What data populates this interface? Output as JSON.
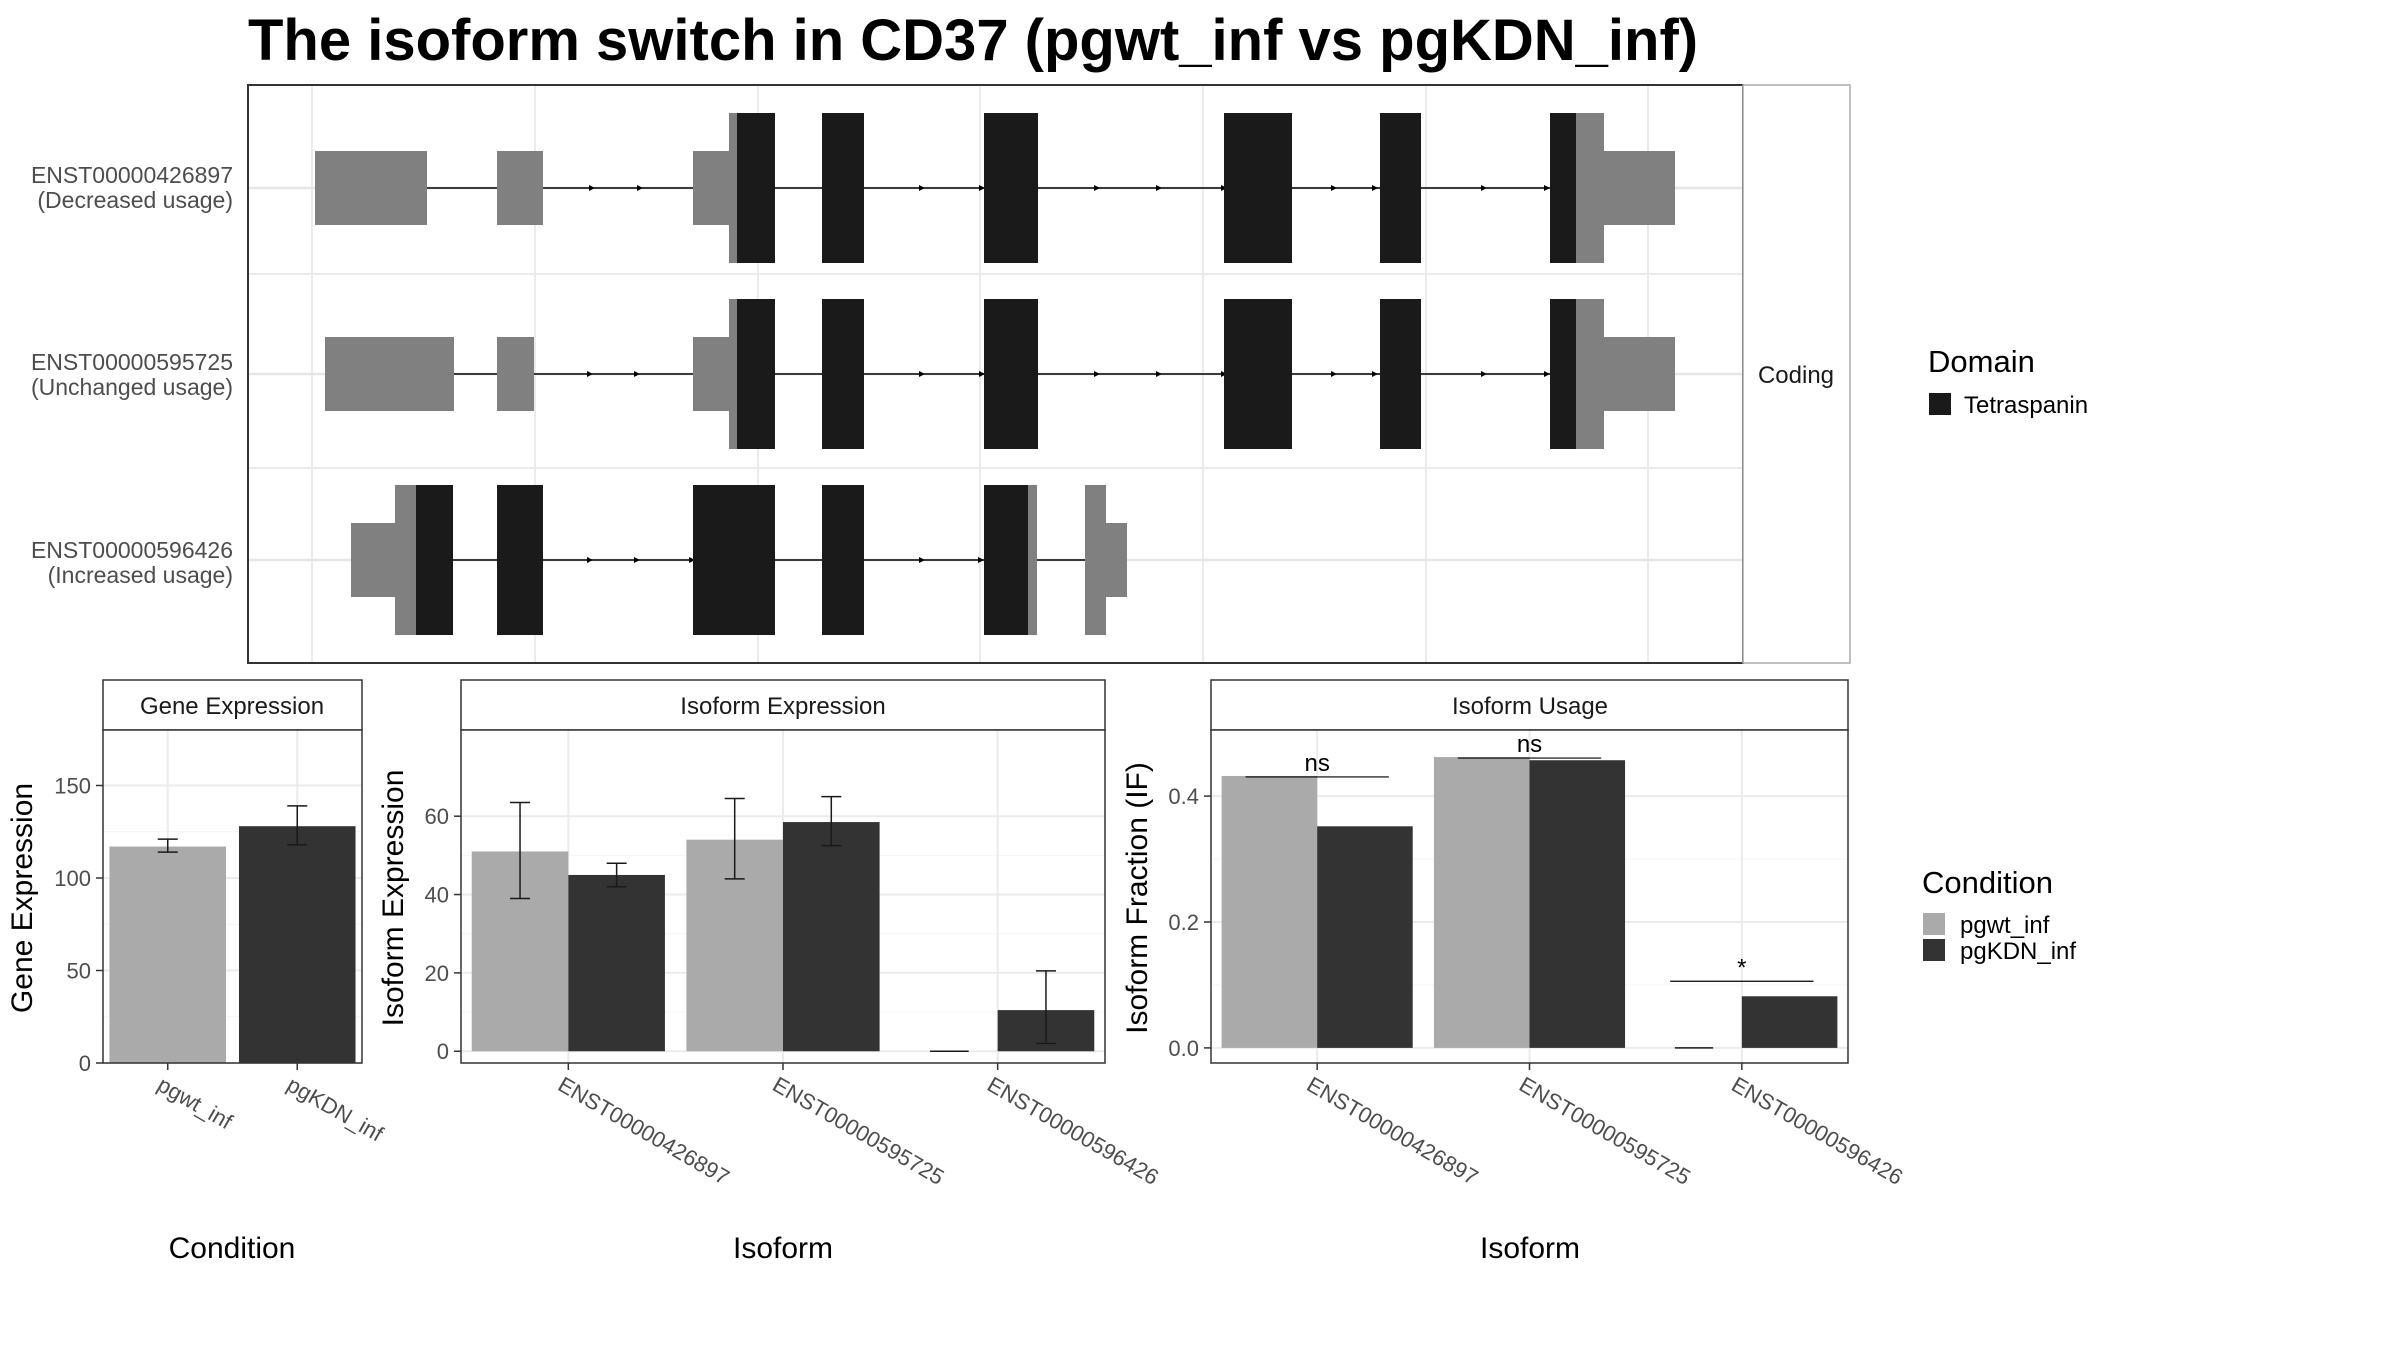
{
  "title": "The isoform switch in CD37 (pgwt_inf vs pgKDN_inf)",
  "colors": {
    "pgwt_inf": "#aaaaaa",
    "pgKDN_inf": "#333333",
    "domain": "#1a1a1a",
    "utr": "#808080"
  },
  "chart_data": [
    {
      "type": "gene-structure",
      "facet_strip": "Coding",
      "transcripts": [
        {
          "id": "ENST00000426897",
          "usage": "(Decreased usage)"
        },
        {
          "id": "ENST00000595725",
          "usage": "(Unchanged usage)"
        },
        {
          "id": "ENST00000596426",
          "usage": "(Increased usage)"
        }
      ],
      "legend": {
        "title": "Domain",
        "items": [
          "Tetraspanin"
        ]
      }
    },
    {
      "type": "bar",
      "strip": "Gene Expression",
      "xlabel": "Condition",
      "ylabel": "Gene Expression",
      "ylim": [
        0,
        180
      ],
      "yticks": [
        0,
        50,
        100,
        150
      ],
      "categories": [
        "pgwt_inf",
        "pgKDN_inf"
      ],
      "values": [
        117,
        128
      ],
      "errors": [
        [
          114,
          121
        ],
        [
          118,
          139
        ]
      ]
    },
    {
      "type": "bar",
      "strip": "Isoform Expression",
      "xlabel": "Isoform",
      "ylabel": "Isoform Expression",
      "ylim": [
        -3,
        82
      ],
      "yticks": [
        0,
        20,
        40,
        60
      ],
      "categories": [
        "ENST00000426897",
        "ENST00000595725",
        "ENST00000596426"
      ],
      "series": [
        {
          "name": "pgwt_inf",
          "values": [
            51,
            54,
            0
          ],
          "errors": [
            [
              39,
              63.5
            ],
            [
              44,
              64.5
            ],
            [
              0,
              0
            ]
          ]
        },
        {
          "name": "pgKDN_inf",
          "values": [
            45,
            58.5,
            10.5
          ],
          "errors": [
            [
              42,
              48
            ],
            [
              52.5,
              65
            ],
            [
              2,
              20.5
            ]
          ]
        }
      ]
    },
    {
      "type": "bar",
      "strip": "Isoform Usage",
      "xlabel": "Isoform",
      "ylabel": "Isoform Fraction (IF)",
      "ylim": [
        -0.024,
        0.505
      ],
      "yticks": [
        "0.0",
        "0.2",
        "0.4"
      ],
      "categories": [
        "ENST00000426897",
        "ENST00000595725",
        "ENST00000596426"
      ],
      "series": [
        {
          "name": "pgwt_inf",
          "values": [
            0.432,
            0.462,
            0.0
          ]
        },
        {
          "name": "pgKDN_inf",
          "values": [
            0.352,
            0.457,
            0.082
          ]
        }
      ],
      "significance": [
        "ns",
        "ns",
        "*"
      ],
      "legend": {
        "title": "Condition",
        "items": [
          "pgwt_inf",
          "pgKDN_inf"
        ]
      }
    }
  ]
}
